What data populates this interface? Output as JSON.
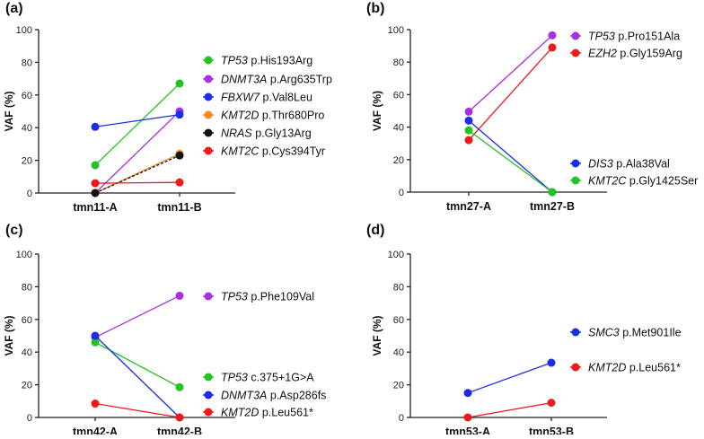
{
  "chart_data": [
    {
      "type": "line",
      "panel_label": "(a)",
      "ylabel": "VAF (%)",
      "ylim": [
        0,
        100
      ],
      "yticks": [
        "0",
        "20",
        "40",
        "60",
        "80",
        "100"
      ],
      "categories": [
        "tmn11-A",
        "tmn11-B"
      ],
      "series": [
        {
          "gene": "TP53",
          "change": " p.His193Arg",
          "color": "#22c322",
          "values": [
            17,
            67
          ]
        },
        {
          "gene": "DNMT3A",
          "change": " p.Arg635Trp",
          "color": "#a830e0",
          "values": [
            0,
            50
          ]
        },
        {
          "gene": "FBXW7",
          "change": " p.Val8Leu",
          "color": "#1a2ee8",
          "values": [
            40.5,
            48
          ]
        },
        {
          "gene": "KMT2D",
          "change": " p.Thr680Pro",
          "color": "#f58a1f",
          "values": [
            0,
            24
          ]
        },
        {
          "gene": "NRAS",
          "change": " p.Gly13Arg",
          "color": "#111111",
          "values": [
            0,
            23
          ],
          "dashed": true
        },
        {
          "gene": "KMT2C",
          "change": " p.Cys394Tyr",
          "color": "#f01818",
          "values": [
            6,
            6.5
          ]
        }
      ]
    },
    {
      "type": "line",
      "panel_label": "(b)",
      "ylabel": "VAF (%)",
      "ylim": [
        0,
        100
      ],
      "yticks": [
        "0",
        "20",
        "40",
        "60",
        "80",
        "100"
      ],
      "categories": [
        "tmn27-A",
        "tmn27-B"
      ],
      "series": [
        {
          "gene": "TP53",
          "change": " p.Pro151Ala",
          "color": "#a830e0",
          "values": [
            49.5,
            96.5
          ]
        },
        {
          "gene": "EZH2",
          "change": " p.Gly159Arg",
          "color": "#f01818",
          "values": [
            32,
            89
          ]
        },
        {
          "gene": "DIS3",
          "change": " p.Ala38Val",
          "color": "#1a2ee8",
          "values": [
            44,
            0
          ]
        },
        {
          "gene": "KMT2C",
          "change": " p.Gly1425Ser",
          "color": "#22c322",
          "values": [
            38,
            0
          ]
        }
      ]
    },
    {
      "type": "line",
      "panel_label": "(c)",
      "ylabel": "VAF (%)",
      "ylim": [
        0,
        100
      ],
      "yticks": [
        "0",
        "20",
        "40",
        "60",
        "80",
        "100"
      ],
      "categories": [
        "tmn42-A",
        "tmn42-B"
      ],
      "series": [
        {
          "gene": "TP53",
          "change": " p.Phe109Val",
          "color": "#a830e0",
          "values": [
            49,
            74.5
          ]
        },
        {
          "gene": "TP53",
          "change": " c.375+1G>A",
          "color": "#22c322",
          "values": [
            46,
            18.5
          ]
        },
        {
          "gene": "DNMT3A",
          "change": " p.Asp286fs",
          "color": "#1a2ee8",
          "values": [
            50,
            0
          ]
        },
        {
          "gene": "KMT2D",
          "change": " p.Leu561*",
          "color": "#f01818",
          "values": [
            8.5,
            0
          ]
        }
      ]
    },
    {
      "type": "line",
      "panel_label": "(d)",
      "ylabel": "VAF (%)",
      "ylim": [
        0,
        100
      ],
      "yticks": [
        "0",
        "20",
        "40",
        "60",
        "80",
        "100"
      ],
      "categories": [
        "tmn53-A",
        "tmn53-B"
      ],
      "series": [
        {
          "gene": "SMC3",
          "change": " p.Met901Ile",
          "color": "#1a2ee8",
          "values": [
            15,
            33.5
          ]
        },
        {
          "gene": "KMT2D",
          "change": " p.Leu561*",
          "color": "#f01818",
          "values": [
            0,
            9
          ]
        }
      ]
    }
  ]
}
